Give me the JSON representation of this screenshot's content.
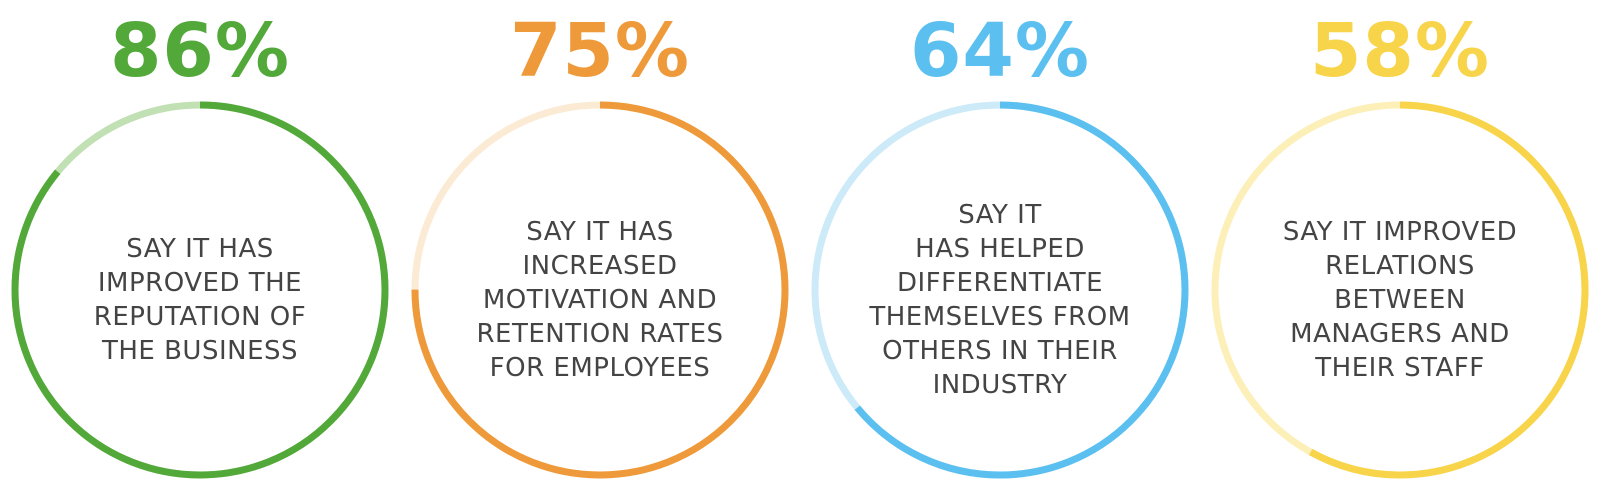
{
  "chart_data": {
    "type": "pie",
    "stats": [
      {
        "value": 86,
        "percent_label": "86%",
        "label": "SAY IT HAS\nIMPROVED THE\nREPUTATION OF\nTHE BUSINESS",
        "color": "#52a93a",
        "track_color": "#c1e0b3"
      },
      {
        "value": 75,
        "percent_label": "75%",
        "label": "SAY IT HAS\nINCREASED\nMOTIVATION AND\nRETENTION RATES\nFOR EMPLOYEES",
        "color": "#ee9a3a",
        "track_color": "#fcebd4"
      },
      {
        "value": 64,
        "percent_label": "64%",
        "label": "SAY IT\nHAS HELPED\nDIFFERENTIATE\nTHEMSELVES FROM\nOTHERS IN THEIR\nINDUSTRY",
        "color": "#5bc0ef",
        "track_color": "#cceaf8"
      },
      {
        "value": 58,
        "percent_label": "58%",
        "label": "SAY IT IMPROVED\nRELATIONS\nBETWEEN\nMANAGERS AND\nTHEIR STAFF",
        "color": "#f8d44a",
        "track_color": "#fcefb8"
      }
    ]
  }
}
